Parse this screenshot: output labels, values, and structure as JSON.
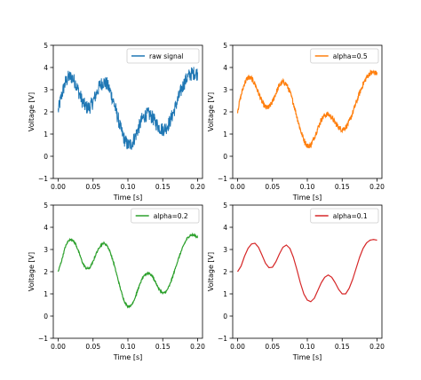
{
  "chart_data": [
    {
      "type": "line",
      "xlabel": "Time [s]",
      "ylabel": "Voltage [V]",
      "xlim": [
        -0.007,
        0.207
      ],
      "ylim": [
        -1,
        5
      ],
      "xticks": [
        "0.00",
        "0.05",
        "0.10",
        "0.15",
        "0.20"
      ],
      "yticks": [
        "−1",
        "0",
        "1",
        "2",
        "3",
        "4",
        "5"
      ],
      "grid": false,
      "legend_position": "top-right",
      "series": [
        {
          "name": "raw signal",
          "color": "#1f77b4",
          "noise": 0.32,
          "x": [
            0.0,
            0.005,
            0.01,
            0.015,
            0.02,
            0.025,
            0.03,
            0.035,
            0.04,
            0.045,
            0.05,
            0.055,
            0.06,
            0.065,
            0.07,
            0.075,
            0.08,
            0.085,
            0.09,
            0.095,
            0.1,
            0.105,
            0.11,
            0.115,
            0.12,
            0.125,
            0.13,
            0.135,
            0.14,
            0.145,
            0.15,
            0.155,
            0.16,
            0.165,
            0.17,
            0.175,
            0.18,
            0.185,
            0.19,
            0.195,
            0.2
          ],
          "y": [
            2.05,
            2.75,
            3.3,
            3.58,
            3.55,
            3.3,
            2.85,
            2.45,
            2.2,
            2.2,
            2.45,
            2.85,
            3.2,
            3.35,
            3.25,
            2.9,
            2.4,
            1.8,
            1.2,
            0.75,
            0.5,
            0.55,
            0.85,
            1.25,
            1.65,
            1.85,
            1.9,
            1.75,
            1.5,
            1.3,
            1.2,
            1.3,
            1.55,
            1.95,
            2.4,
            2.85,
            3.25,
            3.55,
            3.7,
            3.75,
            3.72
          ]
        }
      ]
    },
    {
      "type": "line",
      "xlabel": "Time [s]",
      "ylabel": "Voltage [V]",
      "xlim": [
        -0.007,
        0.207
      ],
      "ylim": [
        -1,
        5
      ],
      "xticks": [
        "0.00",
        "0.05",
        "0.10",
        "0.15",
        "0.20"
      ],
      "yticks": [
        "−1",
        "0",
        "1",
        "2",
        "3",
        "4",
        "5"
      ],
      "grid": false,
      "legend_position": "top-right",
      "series": [
        {
          "name": "alpha=0.5",
          "color": "#ff7f0e",
          "noise": 0.12,
          "x": [
            0.0,
            0.005,
            0.01,
            0.015,
            0.02,
            0.025,
            0.03,
            0.035,
            0.04,
            0.045,
            0.05,
            0.055,
            0.06,
            0.065,
            0.07,
            0.075,
            0.08,
            0.085,
            0.09,
            0.095,
            0.1,
            0.105,
            0.11,
            0.115,
            0.12,
            0.125,
            0.13,
            0.135,
            0.14,
            0.145,
            0.15,
            0.155,
            0.16,
            0.165,
            0.17,
            0.175,
            0.18,
            0.185,
            0.19,
            0.195,
            0.2
          ],
          "y": [
            2.05,
            2.75,
            3.3,
            3.55,
            3.5,
            3.25,
            2.85,
            2.45,
            2.2,
            2.2,
            2.45,
            2.85,
            3.2,
            3.35,
            3.25,
            2.9,
            2.4,
            1.8,
            1.2,
            0.75,
            0.45,
            0.5,
            0.85,
            1.25,
            1.65,
            1.85,
            1.9,
            1.75,
            1.5,
            1.3,
            1.2,
            1.3,
            1.55,
            1.95,
            2.4,
            2.85,
            3.25,
            3.55,
            3.75,
            3.78,
            3.72
          ]
        }
      ]
    },
    {
      "type": "line",
      "xlabel": "Time [s]",
      "ylabel": "Voltage [V]",
      "xlim": [
        -0.007,
        0.207
      ],
      "ylim": [
        -1,
        5
      ],
      "xticks": [
        "0.00",
        "0.05",
        "0.10",
        "0.15",
        "0.20"
      ],
      "yticks": [
        "−1",
        "0",
        "1",
        "2",
        "3",
        "4",
        "5"
      ],
      "grid": false,
      "legend_position": "top-right",
      "series": [
        {
          "name": "alpha=0.2",
          "color": "#2ca02c",
          "noise": 0.04,
          "x": [
            0.0,
            0.005,
            0.01,
            0.015,
            0.02,
            0.025,
            0.03,
            0.035,
            0.04,
            0.045,
            0.05,
            0.055,
            0.06,
            0.065,
            0.07,
            0.075,
            0.08,
            0.085,
            0.09,
            0.095,
            0.1,
            0.105,
            0.11,
            0.115,
            0.12,
            0.125,
            0.13,
            0.135,
            0.14,
            0.145,
            0.15,
            0.155,
            0.16,
            0.165,
            0.17,
            0.175,
            0.18,
            0.185,
            0.19,
            0.195,
            0.2
          ],
          "y": [
            2.0,
            2.5,
            3.1,
            3.42,
            3.45,
            3.25,
            2.85,
            2.4,
            2.15,
            2.15,
            2.45,
            2.85,
            3.15,
            3.3,
            3.2,
            2.85,
            2.35,
            1.75,
            1.15,
            0.65,
            0.42,
            0.48,
            0.8,
            1.25,
            1.65,
            1.88,
            1.95,
            1.8,
            1.5,
            1.2,
            1.02,
            1.1,
            1.4,
            1.85,
            2.35,
            2.8,
            3.2,
            3.5,
            3.65,
            3.65,
            3.55
          ]
        }
      ]
    },
    {
      "type": "line",
      "xlabel": "Time [s]",
      "ylabel": "Voltage [V]",
      "xlim": [
        -0.007,
        0.207
      ],
      "ylim": [
        -1,
        5
      ],
      "xticks": [
        "0.00",
        "0.05",
        "0.10",
        "0.15",
        "0.20"
      ],
      "yticks": [
        "−1",
        "0",
        "1",
        "2",
        "3",
        "4",
        "5"
      ],
      "grid": false,
      "legend_position": "top-right",
      "series": [
        {
          "name": "alpha=0.1",
          "color": "#d62728",
          "noise": 0,
          "x": [
            0.0,
            0.005,
            0.01,
            0.015,
            0.02,
            0.025,
            0.03,
            0.035,
            0.04,
            0.045,
            0.05,
            0.055,
            0.06,
            0.065,
            0.07,
            0.075,
            0.08,
            0.085,
            0.09,
            0.095,
            0.1,
            0.105,
            0.11,
            0.115,
            0.12,
            0.125,
            0.13,
            0.135,
            0.14,
            0.145,
            0.15,
            0.155,
            0.16,
            0.165,
            0.17,
            0.175,
            0.18,
            0.185,
            0.19,
            0.195,
            0.2
          ],
          "y": [
            2.0,
            2.25,
            2.7,
            3.05,
            3.25,
            3.28,
            3.1,
            2.75,
            2.38,
            2.18,
            2.2,
            2.45,
            2.8,
            3.1,
            3.2,
            3.05,
            2.65,
            2.1,
            1.5,
            1.0,
            0.72,
            0.65,
            0.8,
            1.15,
            1.5,
            1.75,
            1.85,
            1.75,
            1.5,
            1.2,
            1.0,
            1.0,
            1.25,
            1.65,
            2.15,
            2.65,
            3.05,
            3.3,
            3.42,
            3.45,
            3.42
          ]
        }
      ]
    }
  ]
}
